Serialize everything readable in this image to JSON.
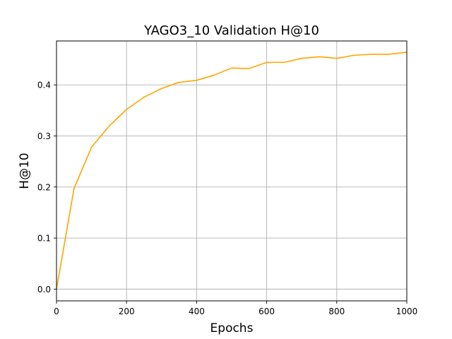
{
  "chart_data": {
    "type": "line",
    "title": "YAGO3_10 Validation H@10",
    "xlabel": "Epochs",
    "ylabel": "H@10",
    "xlim": [
      0,
      1000
    ],
    "ylim": [
      -0.023,
      0.486
    ],
    "xticks": [
      0,
      200,
      400,
      600,
      800,
      1000
    ],
    "yticks": [
      0.0,
      0.1,
      0.2,
      0.3,
      0.4
    ],
    "ytick_labels": [
      "0.0",
      "0.1",
      "0.2",
      "0.3",
      "0.4"
    ],
    "grid": true,
    "series": [
      {
        "color": "#ffa500",
        "x": [
          0,
          50,
          100,
          150,
          200,
          250,
          300,
          350,
          400,
          450,
          500,
          550,
          600,
          650,
          700,
          750,
          800,
          850,
          900,
          950,
          1000
        ],
        "y": [
          0.0,
          0.197,
          0.278,
          0.319,
          0.352,
          0.376,
          0.393,
          0.405,
          0.409,
          0.419,
          0.433,
          0.432,
          0.444,
          0.444,
          0.452,
          0.455,
          0.452,
          0.458,
          0.46,
          0.46,
          0.464
        ]
      }
    ]
  }
}
